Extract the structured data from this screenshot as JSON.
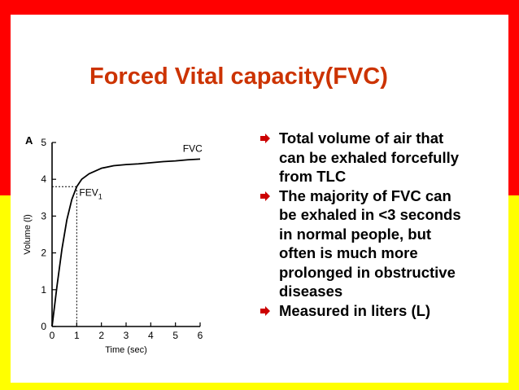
{
  "theme": {
    "title_color": "#cc3300",
    "band_top": "#ff0000",
    "band_bottom": "#ffff00",
    "bullet_color": "#cc0000"
  },
  "slide": {
    "title": "Forced Vital capacity(FVC)",
    "bullets": [
      "Total volume of air that\ncan be exhaled forcefully\nfrom TLC",
      "The majority of FVC can\nbe exhaled in <3 seconds\nin normal people, but\noften is much more\nprolonged in obstructive\ndiseases",
      "Measured in liters (L)"
    ],
    "bullet_icon": "arrow-bullet-icon"
  },
  "chart_data": {
    "type": "line",
    "panel_label": "A",
    "xlabel": "Time (sec)",
    "ylabel": "Volume (l)",
    "xlim": [
      0,
      6
    ],
    "ylim": [
      0,
      5
    ],
    "xticks": [
      "0",
      "1",
      "2",
      "3",
      "4",
      "5",
      "6"
    ],
    "yticks": [
      "0",
      "1",
      "2",
      "3",
      "4",
      "5"
    ],
    "grid": false,
    "series": [
      {
        "name": "FVC",
        "x": [
          0,
          0.2,
          0.4,
          0.6,
          0.8,
          1.0,
          1.2,
          1.5,
          2.0,
          2.5,
          3.0,
          3.5,
          4.0,
          4.5,
          5.0,
          5.5,
          6.0
        ],
        "y": [
          0,
          1.1,
          2.1,
          2.9,
          3.45,
          3.8,
          4.0,
          4.15,
          4.3,
          4.37,
          4.4,
          4.42,
          4.45,
          4.48,
          4.5,
          4.53,
          4.55
        ]
      }
    ],
    "annotations": [
      {
        "text": "FVC",
        "x": 5.3,
        "y": 4.75
      },
      {
        "text": "FEV",
        "subscript": "1",
        "x": 1.1,
        "y": 3.55
      }
    ],
    "fev1_marker": {
      "x": 1.0,
      "y": 3.8
    }
  }
}
